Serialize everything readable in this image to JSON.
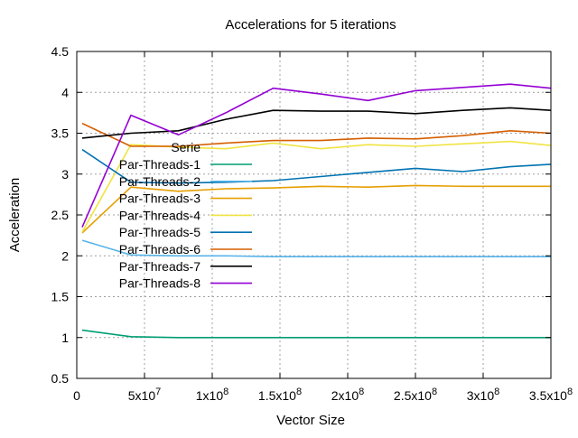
{
  "chart_data": {
    "type": "line",
    "title": "Accelerations for 5 iterations",
    "xlabel": "Vector Size",
    "ylabel": "Acceleration",
    "xlim": [
      0,
      350000000
    ],
    "ylim": [
      0.5,
      4.5
    ],
    "grid": true,
    "legend_position": "top-left",
    "legend_title": "Serie",
    "x_ticks": [
      {
        "value": 0,
        "mant": "0",
        "exp": ""
      },
      {
        "value": 50000000,
        "mant": "5x10",
        "exp": "7"
      },
      {
        "value": 100000000,
        "mant": "1x10",
        "exp": "8"
      },
      {
        "value": 150000000,
        "mant": "1.5x10",
        "exp": "8"
      },
      {
        "value": 200000000,
        "mant": "2x10",
        "exp": "8"
      },
      {
        "value": 250000000,
        "mant": "2.5x10",
        "exp": "8"
      },
      {
        "value": 300000000,
        "mant": "3x10",
        "exp": "8"
      },
      {
        "value": 350000000,
        "mant": "3.5x10",
        "exp": "8"
      }
    ],
    "y_ticks": [
      {
        "value": 0.5,
        "label": "0.5"
      },
      {
        "value": 1,
        "label": "1"
      },
      {
        "value": 1.5,
        "label": "1.5"
      },
      {
        "value": 2,
        "label": "2"
      },
      {
        "value": 2.5,
        "label": "2.5"
      },
      {
        "value": 3,
        "label": "3"
      },
      {
        "value": 3.5,
        "label": "3.5"
      },
      {
        "value": 4,
        "label": "4"
      },
      {
        "value": 4.5,
        "label": "4.5"
      }
    ],
    "series": [
      {
        "name": "Par-Threads-1",
        "color": "#009e73",
        "x": [
          4000000,
          40000000,
          75000000,
          110000000,
          145000000,
          180000000,
          215000000,
          250000000,
          285000000,
          320000000,
          350000000
        ],
        "y": [
          1.09,
          1.01,
          1.0,
          1.0,
          1.0,
          1.0,
          1.0,
          1.0,
          1.0,
          1.0,
          1.0
        ]
      },
      {
        "name": "Par-Threads-2",
        "color": "#56b4e9",
        "x": [
          4000000,
          40000000,
          75000000,
          110000000,
          145000000,
          180000000,
          215000000,
          250000000,
          285000000,
          320000000,
          350000000
        ],
        "y": [
          2.19,
          2.01,
          2.0,
          2.0,
          1.99,
          1.99,
          1.99,
          1.99,
          1.99,
          1.99,
          1.99
        ]
      },
      {
        "name": "Par-Threads-3",
        "color": "#e69f00",
        "x": [
          4000000,
          40000000,
          75000000,
          110000000,
          145000000,
          180000000,
          215000000,
          250000000,
          285000000,
          320000000,
          350000000
        ],
        "y": [
          2.28,
          2.84,
          2.79,
          2.82,
          2.83,
          2.85,
          2.84,
          2.86,
          2.85,
          2.85,
          2.85
        ]
      },
      {
        "name": "Par-Threads-4",
        "color": "#f0e442",
        "x": [
          4000000,
          40000000,
          75000000,
          110000000,
          145000000,
          180000000,
          215000000,
          250000000,
          285000000,
          320000000,
          350000000
        ],
        "y": [
          2.29,
          3.36,
          3.33,
          3.31,
          3.38,
          3.31,
          3.36,
          3.34,
          3.37,
          3.4,
          3.35
        ]
      },
      {
        "name": "Par-Threads-5",
        "color": "#0072b2",
        "x": [
          4000000,
          40000000,
          75000000,
          110000000,
          145000000,
          180000000,
          215000000,
          250000000,
          285000000,
          320000000,
          350000000
        ],
        "y": [
          3.3,
          2.9,
          2.89,
          2.9,
          2.92,
          2.97,
          3.02,
          3.07,
          3.03,
          3.09,
          3.12
        ]
      },
      {
        "name": "Par-Threads-6",
        "color": "#d55e00",
        "x": [
          4000000,
          40000000,
          75000000,
          110000000,
          145000000,
          180000000,
          215000000,
          250000000,
          285000000,
          320000000,
          350000000
        ],
        "y": [
          3.62,
          3.34,
          3.34,
          3.38,
          3.41,
          3.41,
          3.44,
          3.43,
          3.47,
          3.53,
          3.5
        ]
      },
      {
        "name": "Par-Threads-7",
        "color": "#000000",
        "x": [
          4000000,
          40000000,
          75000000,
          110000000,
          145000000,
          180000000,
          215000000,
          250000000,
          285000000,
          320000000,
          350000000
        ],
        "y": [
          3.44,
          3.5,
          3.53,
          3.67,
          3.78,
          3.77,
          3.77,
          3.74,
          3.78,
          3.81,
          3.78
        ]
      },
      {
        "name": "Par-Threads-8",
        "color": "#9400d3",
        "x": [
          4000000,
          40000000,
          75000000,
          110000000,
          145000000,
          180000000,
          215000000,
          250000000,
          285000000,
          320000000,
          350000000
        ],
        "y": [
          2.35,
          3.72,
          3.48,
          3.75,
          4.05,
          3.98,
          3.9,
          4.02,
          4.06,
          4.1,
          4.05
        ]
      }
    ]
  }
}
